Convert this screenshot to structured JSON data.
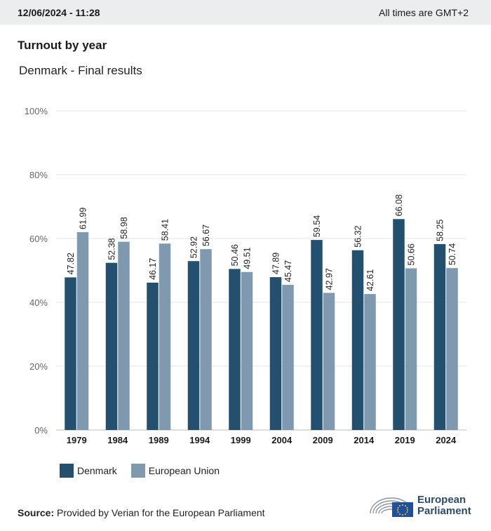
{
  "header": {
    "timestamp": "12/06/2024 - 11:28",
    "timezone_note": "All times are GMT+2"
  },
  "title": "Turnout by year",
  "subtitle": "Denmark - Final results",
  "colors": {
    "denmark": "#23506f",
    "eu": "#7f9aae",
    "grid": "#e6e6e6"
  },
  "chart_data": {
    "type": "bar",
    "categories": [
      "1979",
      "1984",
      "1989",
      "1994",
      "1999",
      "2004",
      "2009",
      "2014",
      "2019",
      "2024"
    ],
    "series": [
      {
        "name": "Denmark",
        "values": [
          47.82,
          52.38,
          46.17,
          52.92,
          50.46,
          47.89,
          59.54,
          56.32,
          66.08,
          58.25
        ]
      },
      {
        "name": "European Union",
        "values": [
          61.99,
          58.98,
          58.41,
          56.67,
          49.51,
          45.47,
          42.97,
          42.61,
          50.66,
          50.74
        ]
      }
    ],
    "yticks": [
      "0%",
      "20%",
      "40%",
      "60%",
      "80%",
      "100%"
    ],
    "ylim": [
      0,
      100
    ],
    "grid": true,
    "legend_position": "bottom-left"
  },
  "legend": {
    "denmark": "Denmark",
    "eu": "European Union"
  },
  "source": {
    "label": "Source:",
    "text": "Provided by Verian for the European Parliament"
  },
  "logo": {
    "line1": "European",
    "line2": "Parliament"
  }
}
